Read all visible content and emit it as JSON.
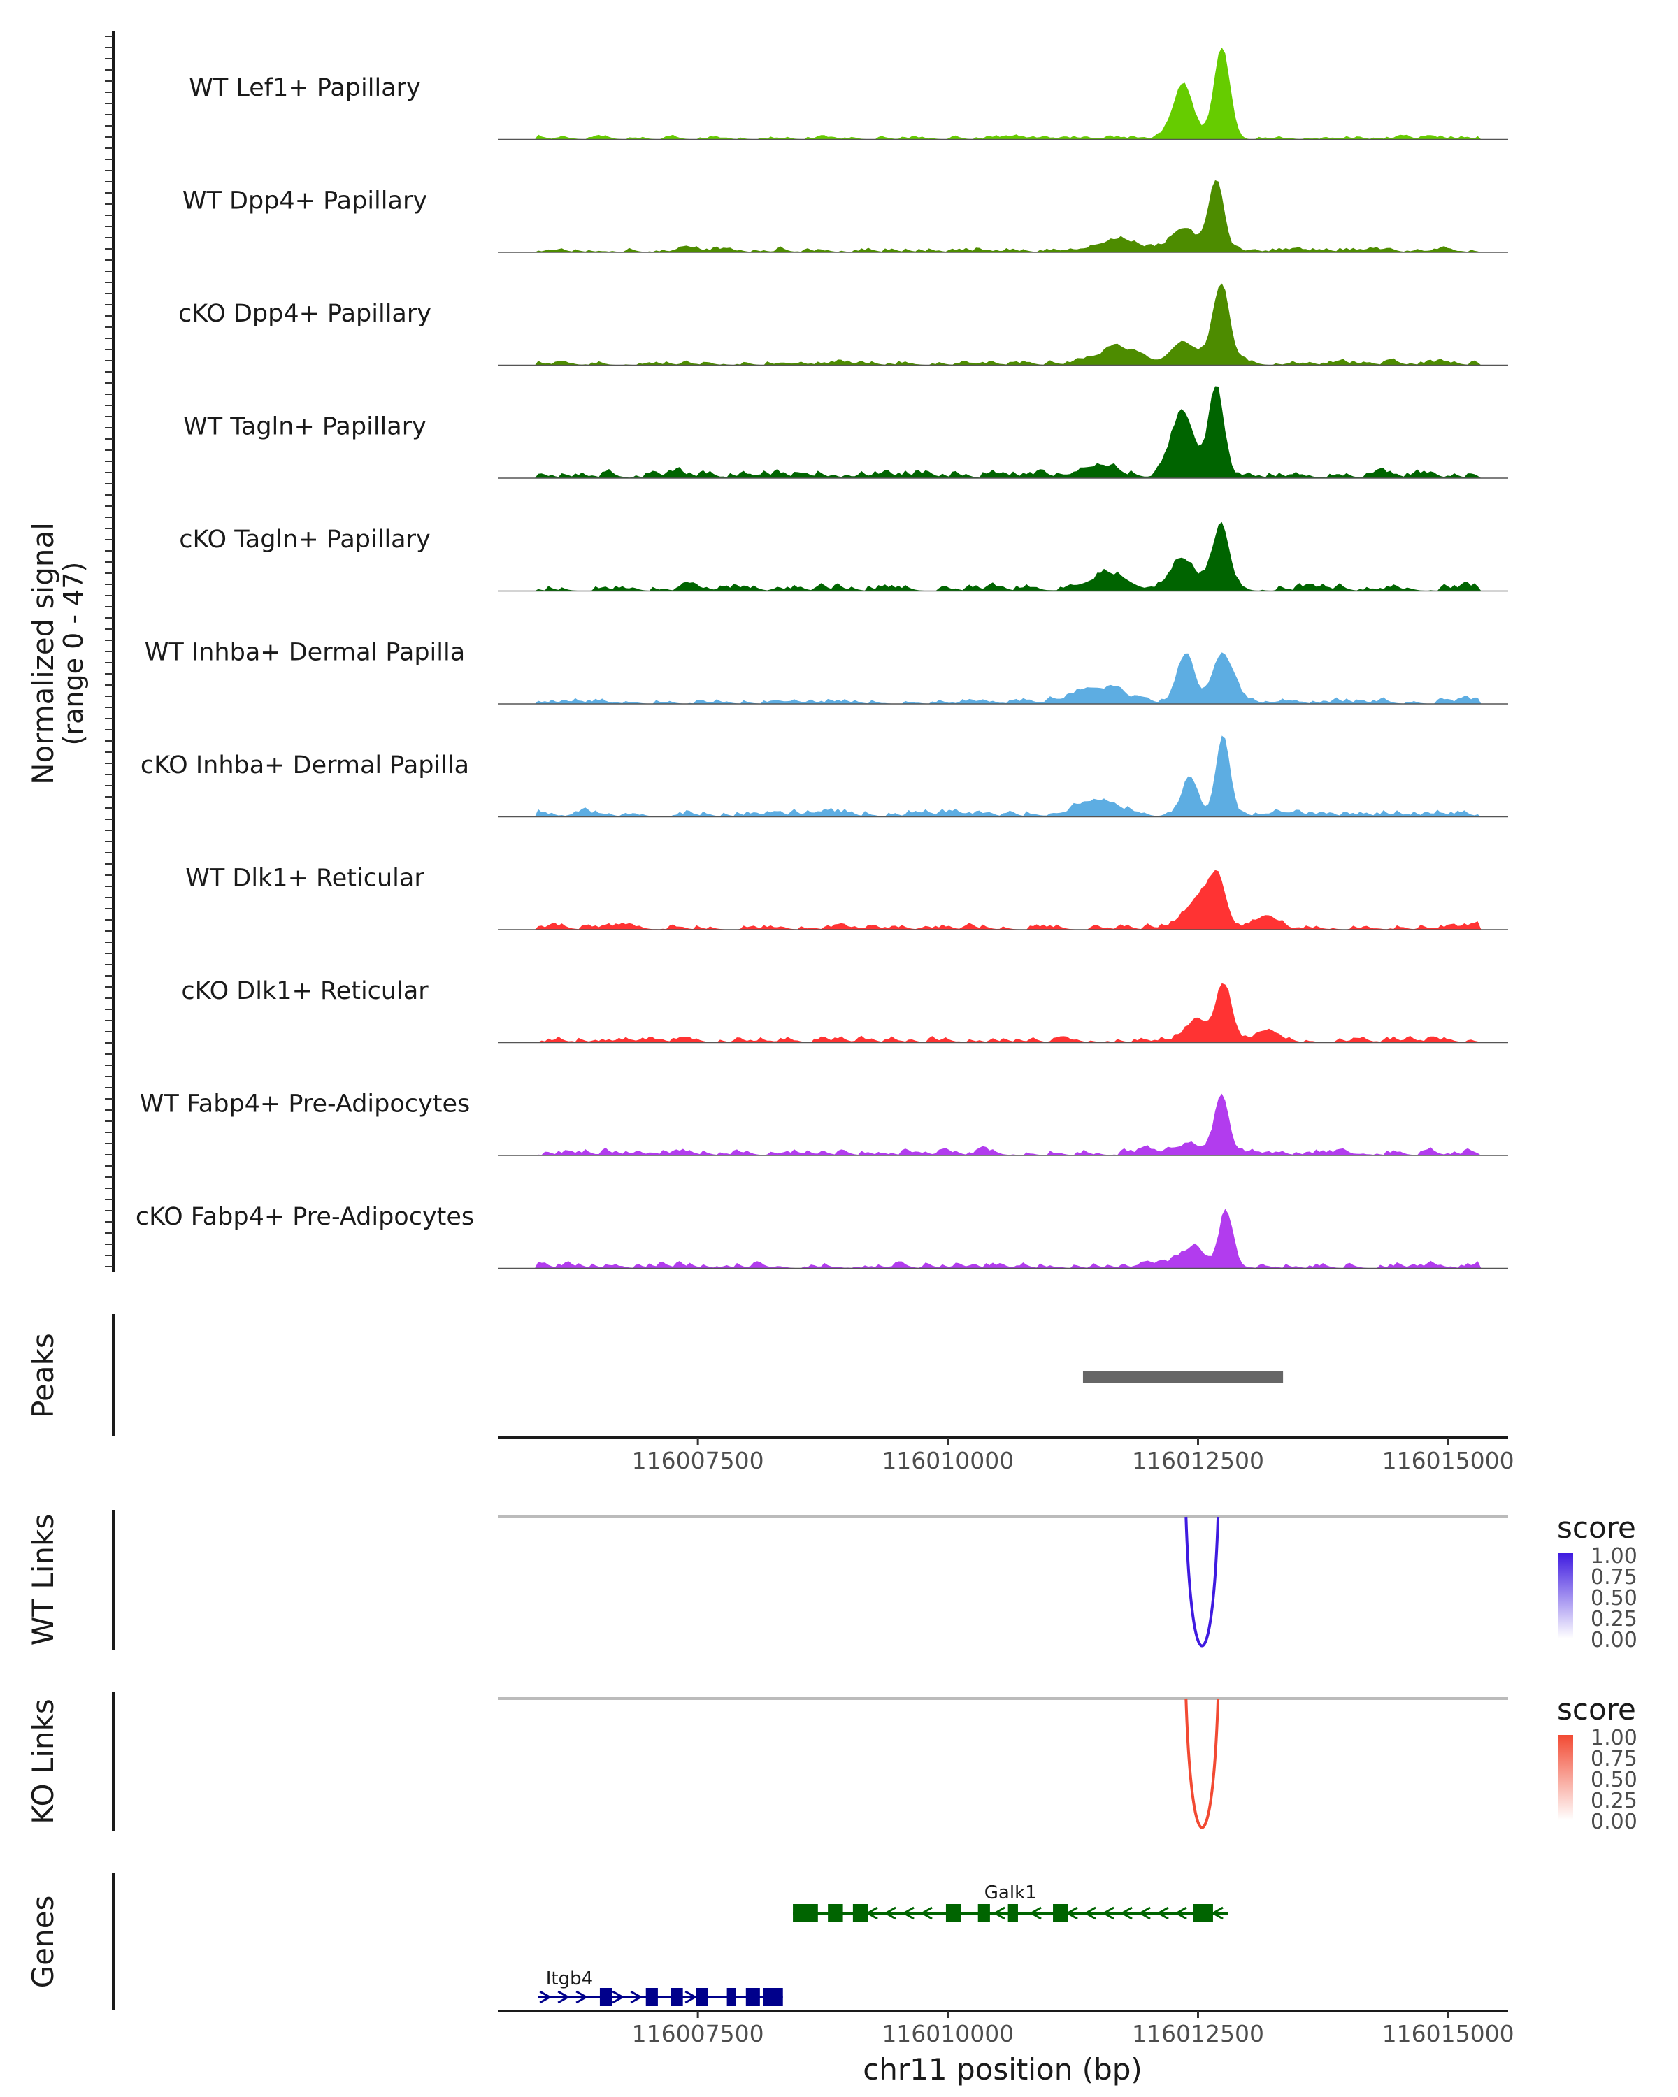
{
  "chart_data": {
    "type": "area",
    "chromosome": "chr11",
    "x_range": [
      116005500,
      116015600
    ],
    "xlabel": "chr11 position (bp)",
    "x_ticks": [
      "116007500",
      "116010000",
      "116012500",
      "116015000"
    ],
    "x_tick_values": [
      116007500,
      116010000,
      116012500,
      116015000
    ],
    "coverage_ylabel": "Normalized signal",
    "coverage_range_label": "(range 0 - 47)",
    "coverage_range": [
      0,
      47
    ],
    "tracks": [
      {
        "name": "WT Lef1+ Papillary",
        "color": "#66cc00",
        "peaks": [
          [
            116012350,
            28,
            140
          ],
          [
            116012740,
            47,
            110
          ]
        ],
        "background": 1.2,
        "seed": 1
      },
      {
        "name": "WT Dpp4+ Papillary",
        "color": "#4d8c00",
        "peaks": [
          [
            116012350,
            12,
            160
          ],
          [
            116012680,
            36,
            110
          ],
          [
            116011700,
            6,
            300
          ]
        ],
        "background": 1.6,
        "seed": 2
      },
      {
        "name": "cKO Dpp4+ Papillary",
        "color": "#4d8c00",
        "peaks": [
          [
            116012350,
            12,
            170
          ],
          [
            116012730,
            40,
            120
          ],
          [
            116011700,
            8,
            300
          ]
        ],
        "background": 1.6,
        "seed": 3
      },
      {
        "name": "WT Tagln+ Papillary",
        "color": "#006400",
        "peaks": [
          [
            116012350,
            32,
            170
          ],
          [
            116012680,
            47,
            100
          ],
          [
            116011500,
            6,
            250
          ]
        ],
        "background": 2.5,
        "seed": 4
      },
      {
        "name": "cKO Tagln+ Papillary",
        "color": "#006400",
        "peaks": [
          [
            116012350,
            16,
            170
          ],
          [
            116012730,
            33,
            120
          ],
          [
            116011600,
            8,
            280
          ]
        ],
        "background": 2.2,
        "seed": 5
      },
      {
        "name": "WT Inhba+ Dermal Papilla",
        "color": "#5dade2",
        "peaks": [
          [
            116012380,
            24,
            120
          ],
          [
            116012750,
            25,
            140
          ],
          [
            116011500,
            8,
            320
          ]
        ],
        "background": 1.8,
        "seed": 6
      },
      {
        "name": "cKO Inhba+ Dermal Papilla",
        "color": "#5dade2",
        "peaks": [
          [
            116012420,
            20,
            110
          ],
          [
            116012750,
            42,
            100
          ],
          [
            116011500,
            8,
            300
          ]
        ],
        "background": 2.2,
        "seed": 7
      },
      {
        "name": "WT Dlk1+ Reticular",
        "color": "#ff3333",
        "peaks": [
          [
            116012550,
            16,
            220
          ],
          [
            116012700,
            18,
            110
          ],
          [
            116013200,
            7,
            140
          ]
        ],
        "background": 1.8,
        "seed": 8
      },
      {
        "name": "cKO Dlk1+ Reticular",
        "color": "#ff3333",
        "peaks": [
          [
            116012500,
            10,
            180
          ],
          [
            116012760,
            28,
            110
          ],
          [
            116013200,
            6,
            160
          ]
        ],
        "background": 1.8,
        "seed": 9
      },
      {
        "name": "WT Fabp4+ Pre-Adipocytes",
        "color": "#b23cee",
        "peaks": [
          [
            116012740,
            30,
            100
          ],
          [
            116012400,
            5,
            200
          ]
        ],
        "background": 2.0,
        "seed": 10
      },
      {
        "name": "cKO Fabp4+ Pre-Adipocytes",
        "color": "#b23cee",
        "peaks": [
          [
            116012780,
            28,
            90
          ],
          [
            116012450,
            9,
            180
          ]
        ],
        "background": 2.0,
        "seed": 11
      }
    ],
    "peaks_track": {
      "label": "Peaks",
      "color": "#666666",
      "regions": [
        [
          116011350,
          116013350
        ]
      ]
    },
    "link_tracks": [
      {
        "label": "WT Links",
        "legend_title": "score",
        "color": "#3f1be0",
        "light": "#ffffff",
        "arc": {
          "start": 116012380,
          "end": 116012700,
          "score": 1.0
        }
      },
      {
        "label": "KO Links",
        "legend_title": "score",
        "color": "#f24a33",
        "light": "#ffffff",
        "arc": {
          "start": 116012380,
          "end": 116012700,
          "score": 1.0
        }
      }
    ],
    "legend_ticks": [
      "1.00",
      "0.75",
      "0.50",
      "0.25",
      "0.00"
    ],
    "genes_track": {
      "label": "Genes",
      "genes": [
        {
          "name": "Galk1",
          "strand": "-",
          "color": "#006400",
          "start": 116008450,
          "end": 116012800,
          "exons": [
            [
              116008450,
              116008700
            ],
            [
              116008800,
              116008950
            ],
            [
              116009050,
              116009200
            ],
            [
              116009980,
              116010130
            ],
            [
              116010300,
              116010420
            ],
            [
              116010600,
              116010700
            ],
            [
              116011050,
              116011200
            ],
            [
              116012450,
              116012650
            ]
          ]
        },
        {
          "name": "Itgb4",
          "strand": "+",
          "color": "#00008b",
          "start": 116005900,
          "end": 116008350,
          "exons": [
            [
              116006520,
              116006640
            ],
            [
              116006980,
              116007100
            ],
            [
              116007230,
              116007350
            ],
            [
              116007480,
              116007600
            ],
            [
              116007790,
              116007880
            ],
            [
              116007980,
              116008120
            ],
            [
              116008150,
              116008350
            ]
          ]
        }
      ]
    }
  }
}
